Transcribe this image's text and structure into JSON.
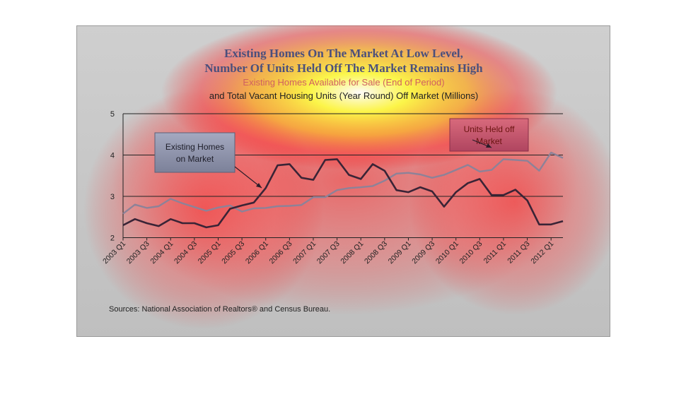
{
  "colors": {
    "frame_bg": "#c9c9c9",
    "title": "#4b4f7c",
    "existing_line": "#3a2436",
    "held_off_line": "#8d8298",
    "callout_existing_bg": "#8a8fa8",
    "callout_held_bg": "#c05070"
  },
  "chart_data": {
    "type": "line",
    "title": [
      "Existing Homes On The Market At Low Level,",
      "Number Of Units Held Off The Market Remains High"
    ],
    "subtitle": [
      "Existing Homes Available for Sale (End of Period)",
      "and Total Vacant Housing Units (Year Round) Off Market (Millions)"
    ],
    "ylim": [
      2,
      5
    ],
    "y_ticks": [
      "2",
      "3",
      "4",
      "5"
    ],
    "grid": true,
    "x_tick_labels": [
      "2003 Q1",
      "2003 Q3",
      "2004 Q1",
      "2004 Q3",
      "2005 Q1",
      "2005 Q3",
      "2006 Q1",
      "2006 Q3",
      "2007 Q1",
      "2007 Q3",
      "2008 Q1",
      "2008 Q3",
      "2009 Q1",
      "2009 Q3",
      "2010 Q1",
      "2010 Q3",
      "2011 Q1",
      "2011 Q3",
      "2012 Q1"
    ],
    "series": [
      {
        "name": "Existing Homes on Market",
        "values": [
          2.3,
          2.45,
          2.35,
          2.28,
          2.45,
          2.35,
          2.35,
          2.25,
          2.3,
          2.7,
          2.78,
          2.85,
          3.2,
          3.75,
          3.78,
          3.45,
          3.4,
          3.88,
          3.9,
          3.52,
          3.42,
          3.78,
          3.62,
          3.15,
          3.1,
          3.22,
          3.12,
          2.75,
          3.1,
          3.32,
          3.42,
          3.03,
          3.03,
          3.16,
          2.9,
          2.32,
          2.32,
          2.4
        ]
      },
      {
        "name": "Units Held off Market",
        "values": [
          2.58,
          2.8,
          2.72,
          2.76,
          2.94,
          2.83,
          2.74,
          2.65,
          2.73,
          2.78,
          2.63,
          2.71,
          2.72,
          2.76,
          2.77,
          2.79,
          2.98,
          2.98,
          3.15,
          3.2,
          3.22,
          3.25,
          3.38,
          3.55,
          3.57,
          3.53,
          3.45,
          3.52,
          3.64,
          3.76,
          3.6,
          3.64,
          3.9,
          3.88,
          3.86,
          3.62,
          4.06,
          3.93
        ]
      }
    ],
    "annotations": {
      "existing": [
        "Existing Homes",
        "on Market"
      ],
      "held_off": [
        "Units Held off",
        "Market"
      ]
    },
    "source": "Sources: National Association of Realtors® and Census Bureau."
  }
}
